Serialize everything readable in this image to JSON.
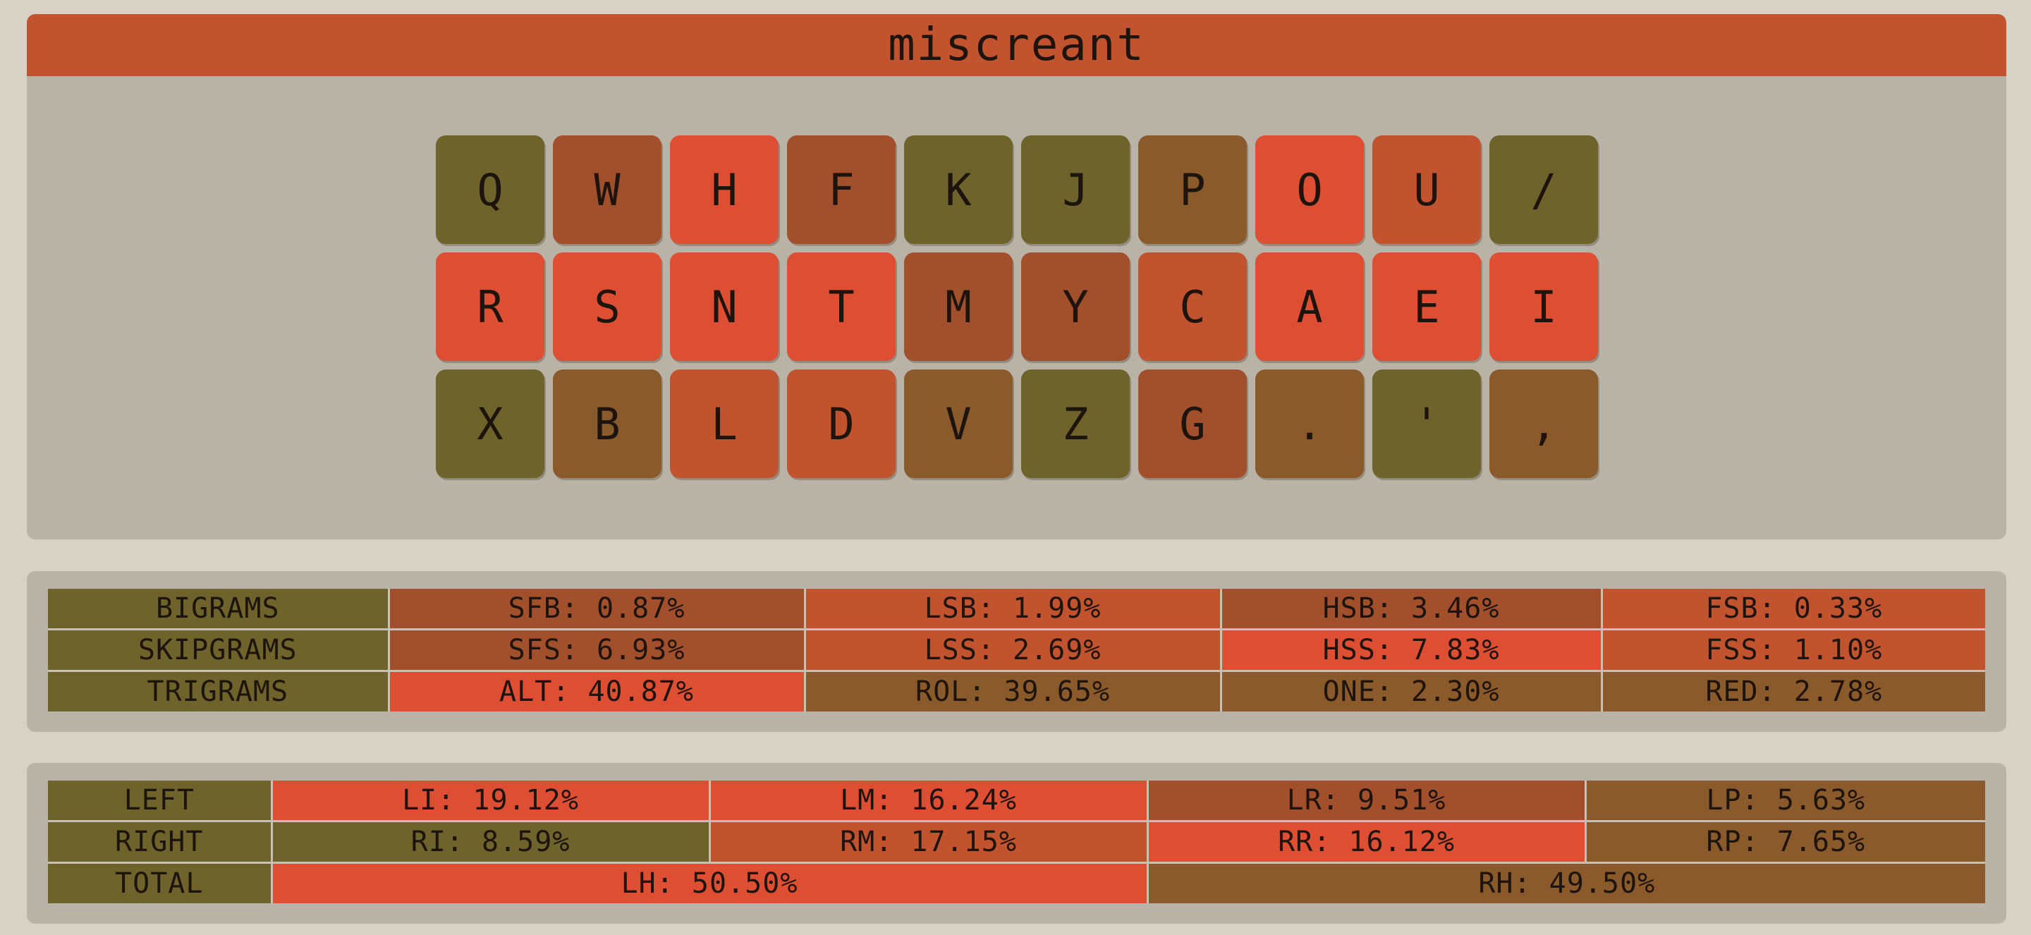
{
  "layout_name": "miscreant",
  "colors": {
    "olive": "#6d632b",
    "brown": "#8b5a2a",
    "rust": "#a24f2b",
    "orange": "#c1532e",
    "red": "#dd4e33"
  },
  "keyboard": {
    "rows": [
      [
        {
          "label": "Q",
          "color": "olive"
        },
        {
          "label": "W",
          "color": "rust"
        },
        {
          "label": "H",
          "color": "red"
        },
        {
          "label": "F",
          "color": "rust"
        },
        {
          "label": "K",
          "color": "olive"
        },
        {
          "label": "J",
          "color": "olive"
        },
        {
          "label": "P",
          "color": "brown"
        },
        {
          "label": "O",
          "color": "red"
        },
        {
          "label": "U",
          "color": "orange"
        },
        {
          "label": "/",
          "color": "olive"
        }
      ],
      [
        {
          "label": "R",
          "color": "red"
        },
        {
          "label": "S",
          "color": "red"
        },
        {
          "label": "N",
          "color": "red"
        },
        {
          "label": "T",
          "color": "red"
        },
        {
          "label": "M",
          "color": "rust"
        },
        {
          "label": "Y",
          "color": "rust"
        },
        {
          "label": "C",
          "color": "orange"
        },
        {
          "label": "A",
          "color": "red"
        },
        {
          "label": "E",
          "color": "red"
        },
        {
          "label": "I",
          "color": "red"
        }
      ],
      [
        {
          "label": "X",
          "color": "olive"
        },
        {
          "label": "B",
          "color": "brown"
        },
        {
          "label": "L",
          "color": "orange"
        },
        {
          "label": "D",
          "color": "orange"
        },
        {
          "label": "V",
          "color": "brown"
        },
        {
          "label": "Z",
          "color": "olive"
        },
        {
          "label": "G",
          "color": "rust"
        },
        {
          "label": ".",
          "color": "brown"
        },
        {
          "label": "'",
          "color": "olive"
        },
        {
          "label": ",",
          "color": "brown"
        }
      ]
    ]
  },
  "stats": {
    "rows": [
      {
        "header": "BIGRAMS",
        "cells": [
          {
            "text": "SFB: 0.87%",
            "color": "rust"
          },
          {
            "text": "LSB: 1.99%",
            "color": "orange"
          },
          {
            "text": "HSB: 3.46%",
            "color": "rust"
          },
          {
            "text": "FSB: 0.33%",
            "color": "orange"
          }
        ]
      },
      {
        "header": "SKIPGRAMS",
        "cells": [
          {
            "text": "SFS: 6.93%",
            "color": "rust"
          },
          {
            "text": "LSS: 2.69%",
            "color": "orange"
          },
          {
            "text": "HSS: 7.83%",
            "color": "red"
          },
          {
            "text": "FSS: 1.10%",
            "color": "orange"
          }
        ]
      },
      {
        "header": "TRIGRAMS",
        "cells": [
          {
            "text": "ALT: 40.87%",
            "color": "red"
          },
          {
            "text": "ROL: 39.65%",
            "color": "brown"
          },
          {
            "text": "ONE: 2.30%",
            "color": "brown"
          },
          {
            "text": "RED: 2.78%",
            "color": "brown"
          }
        ]
      }
    ]
  },
  "fingers": {
    "left": {
      "header": "LEFT",
      "cells": [
        {
          "text": "LI: 19.12%",
          "color": "red"
        },
        {
          "text": "LM: 16.24%",
          "color": "red"
        },
        {
          "text": "LR: 9.51%",
          "color": "rust"
        },
        {
          "text": "LP: 5.63%",
          "color": "brown"
        }
      ]
    },
    "right": {
      "header": "RIGHT",
      "cells": [
        {
          "text": "RI: 8.59%",
          "color": "olive"
        },
        {
          "text": "RM: 17.15%",
          "color": "orange"
        },
        {
          "text": "RR: 16.12%",
          "color": "red"
        },
        {
          "text": "RP: 7.65%",
          "color": "brown"
        }
      ]
    },
    "total": {
      "header": "TOTAL",
      "cells": [
        {
          "text": "LH: 50.50%",
          "color": "red"
        },
        {
          "text": "RH: 49.50%",
          "color": "brown"
        }
      ]
    }
  }
}
